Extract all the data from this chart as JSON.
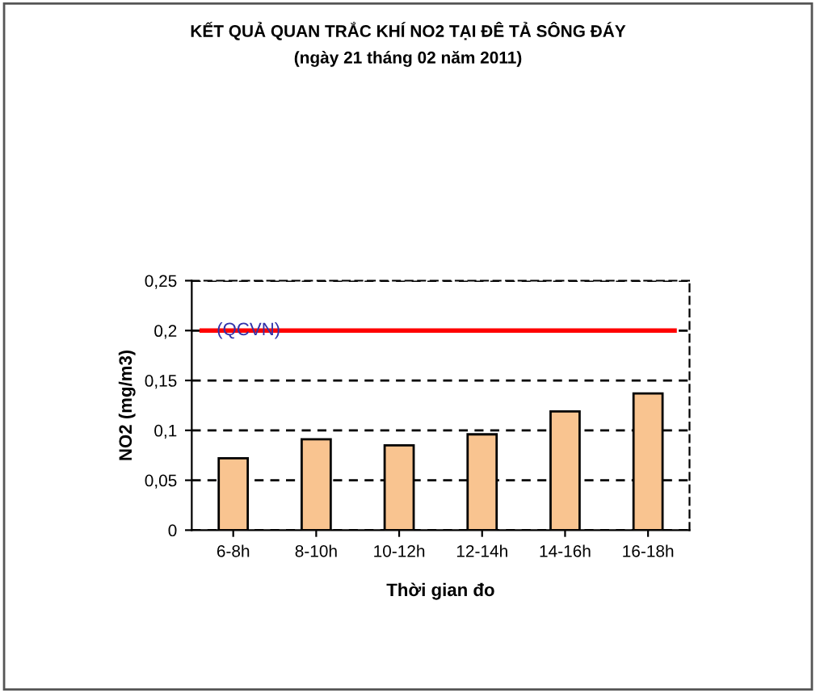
{
  "chart_data": {
    "type": "bar",
    "title": "KẾT QUẢ QUAN TRẮC KHÍ NO2 TẠI ĐÊ TẢ SÔNG ĐÁY",
    "subtitle": "(ngày 21 tháng 02 năm 2011)",
    "xlabel": "Thời gian đo",
    "ylabel": "NO2 (mg/m3)",
    "categories": [
      "6-8h",
      "8-10h",
      "10-12h",
      "12-14h",
      "14-16h",
      "16-18h"
    ],
    "series": [
      {
        "color": "#f9c490",
        "values": [
          0.072,
          0.091,
          0.085,
          0.096,
          0.119,
          0.137
        ]
      }
    ],
    "ylim": [
      0,
      0.25
    ],
    "yticks": [
      {
        "value": 0,
        "label": "0"
      },
      {
        "value": 0.05,
        "label": "0,05"
      },
      {
        "value": 0.1,
        "label": "0,1"
      },
      {
        "value": 0.15,
        "label": "0,15"
      },
      {
        "value": 0.2,
        "label": "0,2"
      },
      {
        "value": 0.25,
        "label": "0,25"
      }
    ],
    "ref_lines": [
      {
        "axis": "y",
        "value": 0.2,
        "label": "(QCVN)",
        "color": "#ff0000",
        "line_style": "solid"
      }
    ],
    "grid": "y",
    "legend": false
  }
}
